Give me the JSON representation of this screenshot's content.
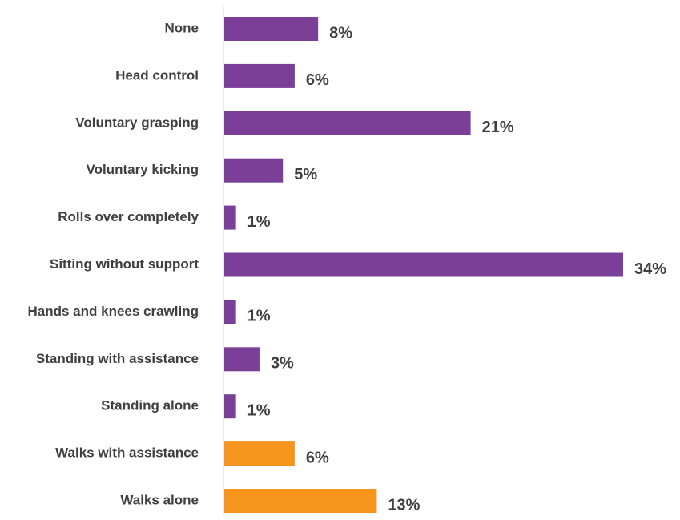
{
  "chart_data": {
    "type": "bar",
    "orientation": "horizontal",
    "categories": [
      "None",
      "Head control",
      "Voluntary grasping",
      "Voluntary kicking",
      "Rolls over completely",
      "Sitting without support",
      "Hands and knees crawling",
      "Standing with assistance",
      "Standing alone",
      "Walks with assistance",
      "Walks alone"
    ],
    "values": [
      8,
      6,
      21,
      5,
      1,
      34,
      1,
      3,
      1,
      6,
      13
    ],
    "value_labels": [
      "8%",
      "6%",
      "21%",
      "5%",
      "1%",
      "34%",
      "1%",
      "3%",
      "1%",
      "6%",
      "13%"
    ],
    "bar_colors": [
      "#7B3F98",
      "#7B3F98",
      "#7B3F98",
      "#7B3F98",
      "#7B3F98",
      "#7B3F98",
      "#7B3F98",
      "#7B3F98",
      "#7B3F98",
      "#F7941D",
      "#F7941D"
    ],
    "title": "",
    "xlabel": "",
    "ylabel": "",
    "xlim": [
      0,
      34
    ],
    "grid": false,
    "legend": "none"
  },
  "colors": {
    "label_text": "#3f3f3f",
    "axis_line": "#d9d9d9"
  }
}
